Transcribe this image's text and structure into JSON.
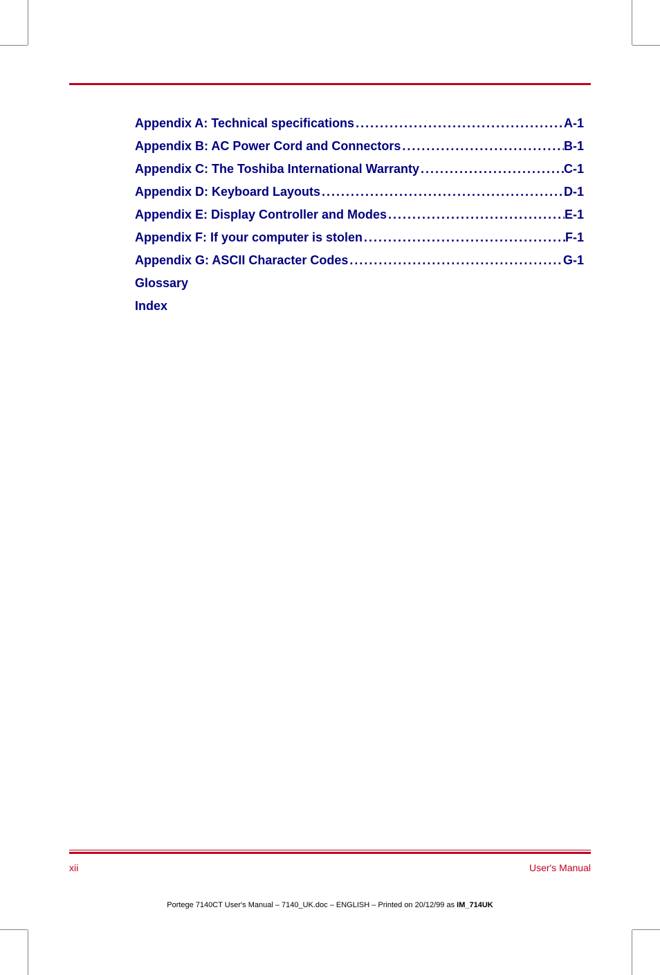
{
  "colors": {
    "rule": "#c00020",
    "toc_text": "#000080",
    "footer_text": "#c00020",
    "docinfo_text": "#000000",
    "background": "#ffffff"
  },
  "typography": {
    "toc_fontsize_pt": 14,
    "toc_fontweight": "bold",
    "footer_fontsize_pt": 11,
    "docinfo_fontsize_pt": 8
  },
  "toc": {
    "entries": [
      {
        "title": "Appendix A: Technical specifications",
        "page": "A-1"
      },
      {
        "title": "Appendix B: AC Power Cord and Connectors ",
        "page": "B-1"
      },
      {
        "title": "Appendix C: The Toshiba International Warranty",
        "page": "C-1"
      },
      {
        "title": "Appendix D: Keyboard Layouts",
        "page": "D-1"
      },
      {
        "title": "Appendix E: Display Controller and Modes ",
        "page": "E-1"
      },
      {
        "title": "Appendix F: If your computer is stolen ",
        "page": " F-1"
      },
      {
        "title": "Appendix G: ASCII Character Codes",
        "page": " G-1"
      }
    ],
    "plain_entries": [
      "Glossary",
      "Index"
    ]
  },
  "footer": {
    "page_number": "xii",
    "manual_label": "User's Manual"
  },
  "docinfo": {
    "prefix": "Portege 7140CT User's Manual  – 7140_UK.doc – ENGLISH – Printed on 20/12/99 as ",
    "bold_suffix": "IM_714UK"
  }
}
